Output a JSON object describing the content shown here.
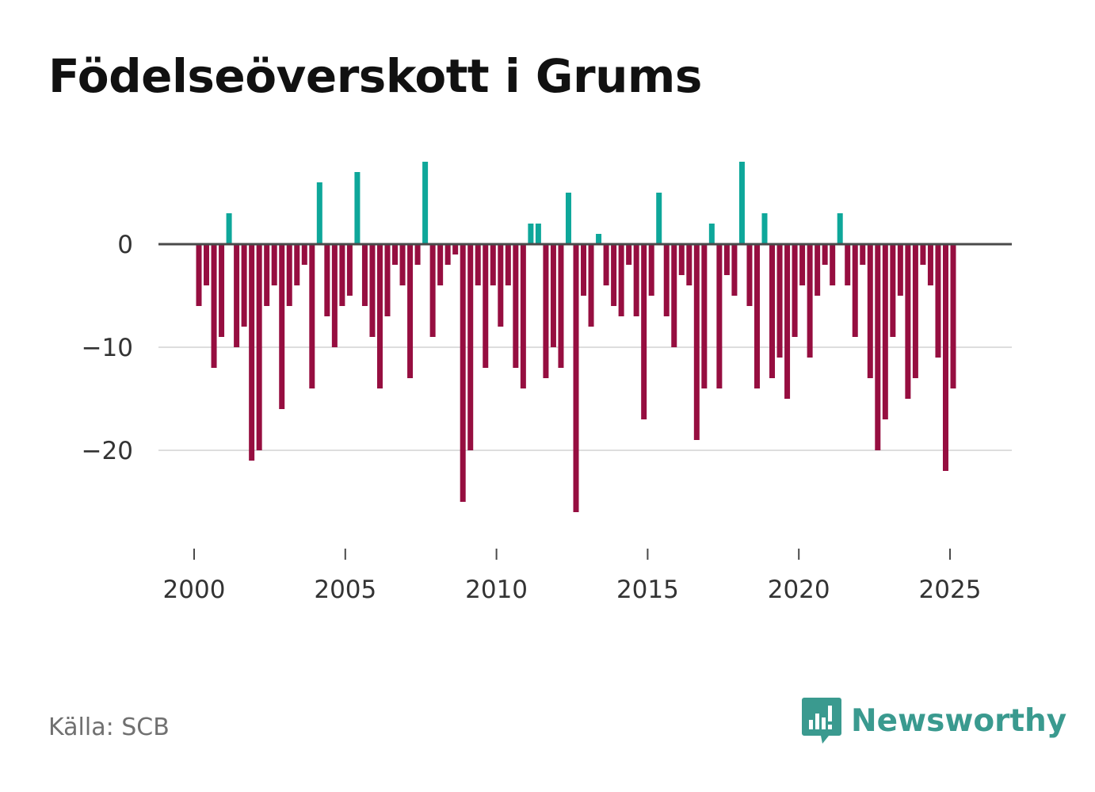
{
  "title": "Födelseöverskott i Grums",
  "source": "Källa: SCB",
  "brand": {
    "name": "Newsworthy",
    "icon": "newsworthy-logo-icon",
    "color": "#3a9a8f"
  },
  "colors": {
    "positive": "#0ea79a",
    "negative": "#960e40",
    "zero_line": "#4a4a4a",
    "grid": "#dddddd",
    "text": "#333333"
  },
  "chart_data": {
    "type": "bar",
    "title": "Födelseöverskott i Grums",
    "xlabel": "",
    "ylabel": "",
    "interval": "monthly",
    "start": "2000-01",
    "ylim": [
      -28,
      8
    ],
    "xlim": [
      1999.9,
      2027.2
    ],
    "y_ticks": [
      0,
      -10,
      -20
    ],
    "y_tick_labels": [
      "0",
      "−10",
      "−20"
    ],
    "x_ticks": [
      2000,
      2005,
      2010,
      2015,
      2020,
      2025
    ],
    "x_tick_labels": [
      "2000",
      "2005",
      "2010",
      "2015",
      "2020",
      "2025"
    ],
    "grid": true,
    "values": [
      -6,
      -4,
      -12,
      -9,
      3,
      -10,
      -8,
      -21,
      -20,
      -6,
      -4,
      -16,
      -6,
      -4,
      -2,
      -14,
      6,
      -7,
      -10,
      -6,
      -5,
      7,
      -6,
      -9,
      -14,
      -7,
      -2,
      -4,
      -13,
      -2,
      8,
      -9,
      -4,
      -2,
      -1,
      -25,
      -20,
      -4,
      -12,
      -4,
      -8,
      -4,
      -12,
      -14,
      2,
      2,
      -13,
      -10,
      -12,
      5,
      -26,
      -5,
      -8,
      1,
      -4,
      -6,
      -7,
      -2,
      -7,
      -17,
      -5,
      5,
      -7,
      -10,
      -3,
      -4,
      -19,
      -14,
      2,
      -14,
      -3,
      -5,
      8,
      -6,
      -14,
      3,
      -13,
      -11,
      -15,
      -9,
      -4,
      -11,
      -5,
      -2,
      -4,
      3,
      -4,
      -9,
      -2,
      -13,
      -20,
      -17,
      -9,
      -5,
      -15,
      -13,
      -2,
      -4,
      -11,
      -22,
      -14
    ]
  }
}
